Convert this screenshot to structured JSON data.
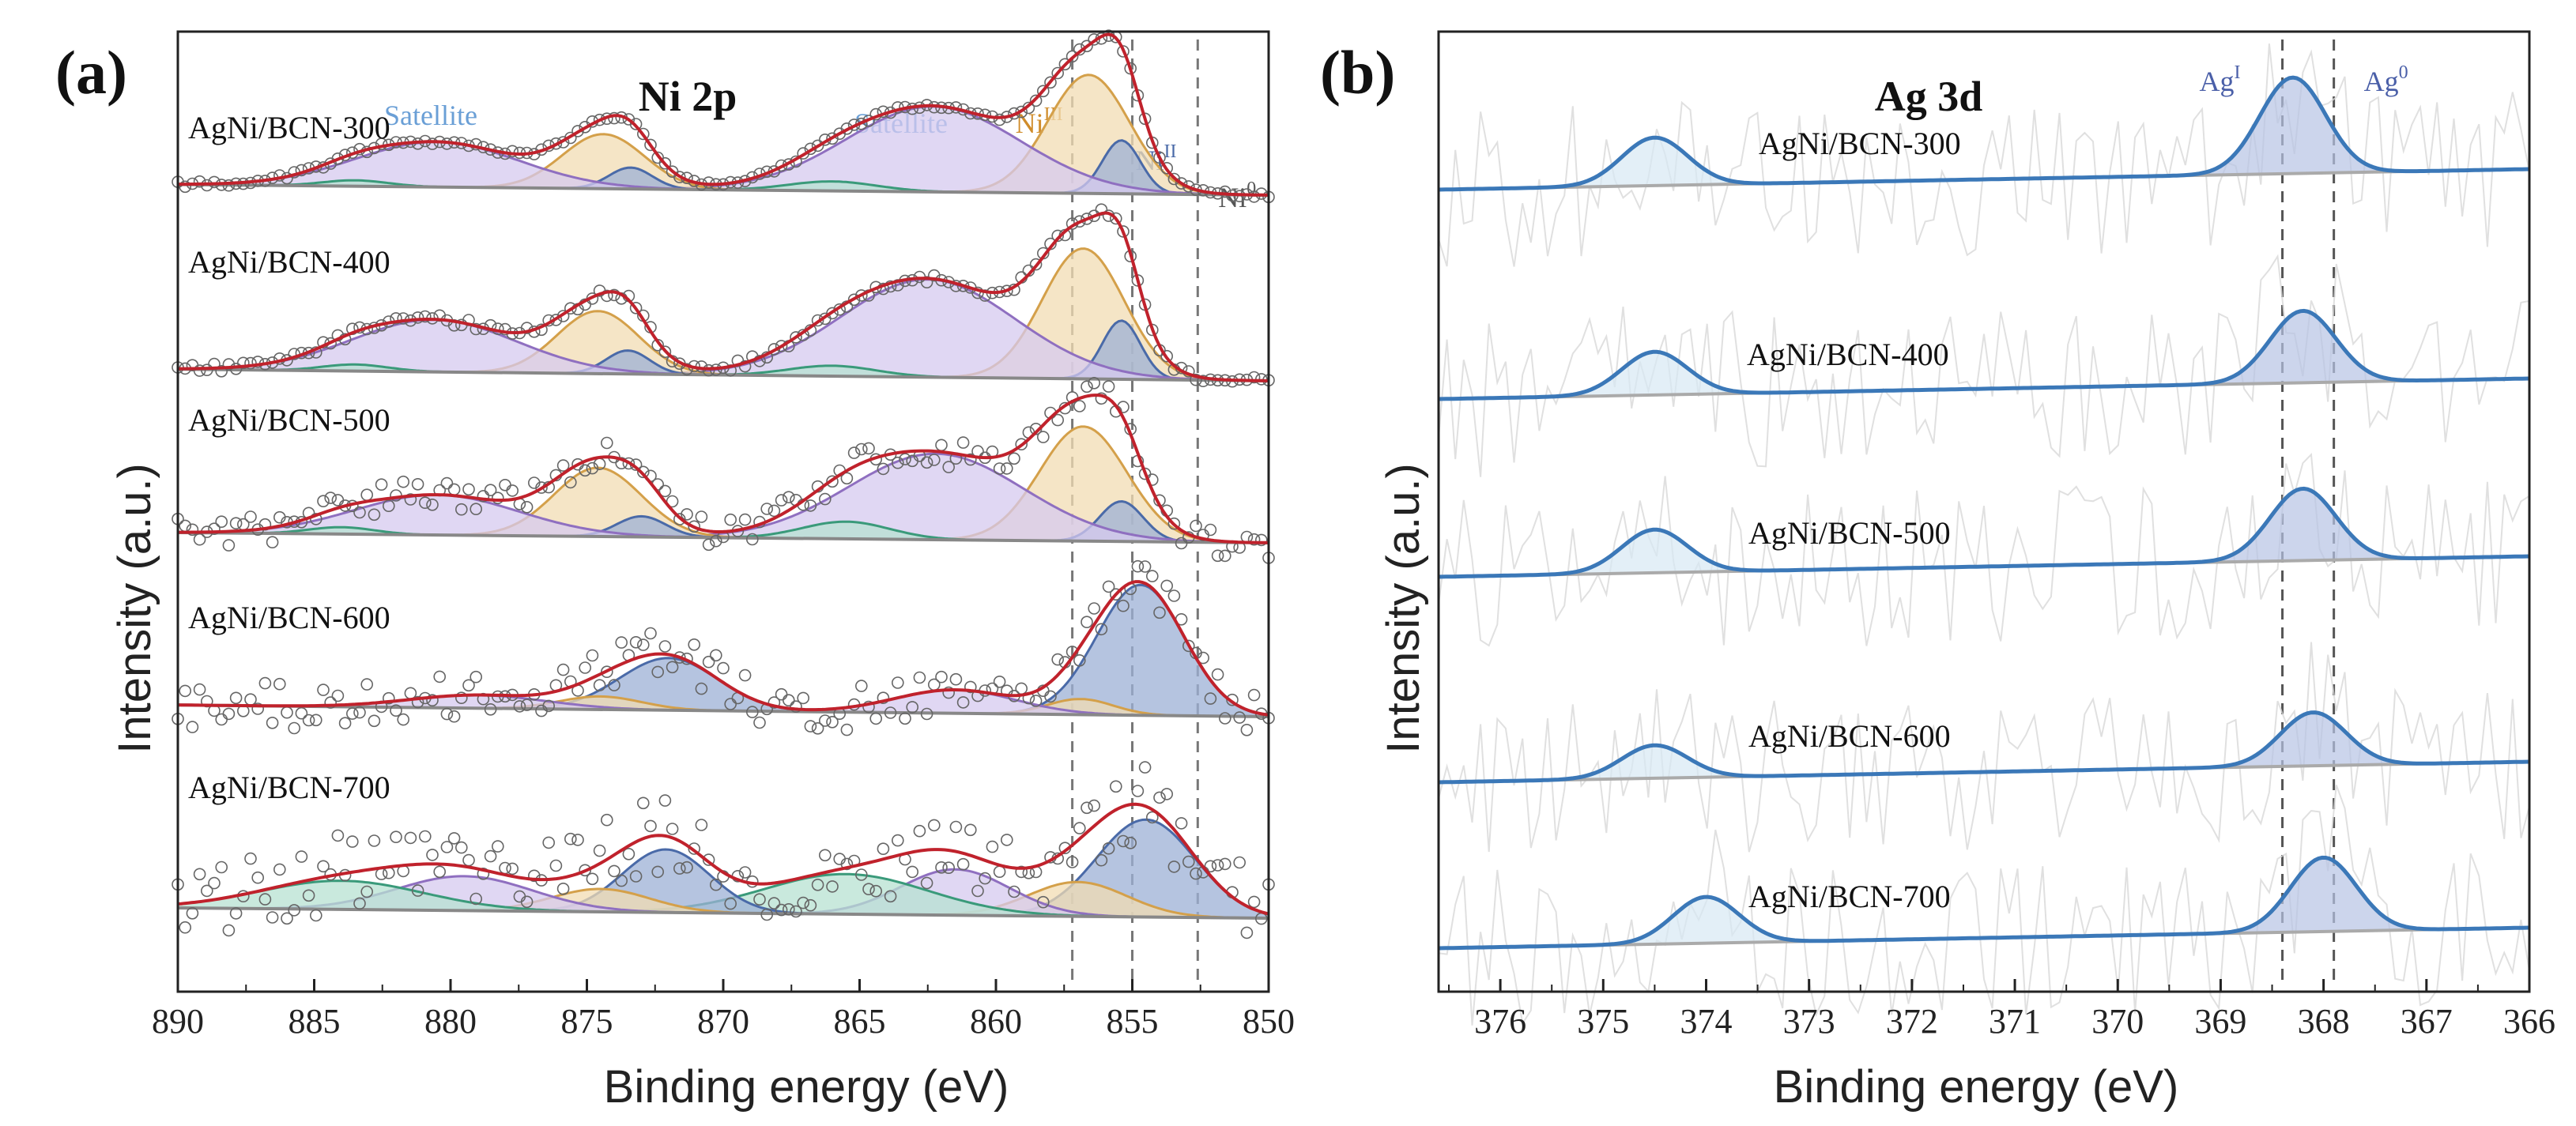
{
  "chart_data": [
    {
      "type": "line",
      "panel": "(a)",
      "title": "Ni 2p",
      "xlabel": "Binding energy (eV)",
      "ylabel": "Intensity (a.u.)",
      "xlim": [
        890,
        850
      ],
      "xticks": [
        890,
        885,
        880,
        875,
        870,
        865,
        860,
        855,
        850
      ],
      "samples": [
        "AgNi/BCN-300",
        "AgNi/BCN-400",
        "AgNi/BCN-500",
        "AgNi/BCN-600",
        "AgNi/BCN-700"
      ],
      "reference_lines": [
        {
          "x": 857.2,
          "label": "Ni",
          "sup": "III"
        },
        {
          "x": 855.0,
          "label": "Ni",
          "sup": "II"
        },
        {
          "x": 852.6,
          "label": "Ni",
          "sup": "0"
        }
      ],
      "annotations": [
        "Satellite",
        "Satellite"
      ],
      "series": [
        {
          "name": "AgNi/BCN-300",
          "noise": 0.01,
          "peaks": [
            {
              "center": 856.6,
              "amp": 1.0,
              "width": 1.5,
              "color": "#d4a04a",
              "fill": "#f2dcb3"
            },
            {
              "center": 855.4,
              "amp": 0.45,
              "width": 0.7,
              "color": "#4a6aa8",
              "fill": "#9cb0d6"
            },
            {
              "center": 862.3,
              "amp": 0.72,
              "width": 3.2,
              "color": "#8f6fc0",
              "fill": "#d6c9ef"
            },
            {
              "center": 866.0,
              "amp": 0.08,
              "width": 1.6,
              "color": "#3a9a7a",
              "fill": "#b7e2d2"
            },
            {
              "center": 874.4,
              "amp": 0.46,
              "width": 1.5,
              "color": "#d4a04a",
              "fill": "#f2dcb3"
            },
            {
              "center": 873.4,
              "amp": 0.18,
              "width": 0.8,
              "color": "#4a6aa8",
              "fill": "#9cb0d6"
            },
            {
              "center": 880.5,
              "amp": 0.38,
              "width": 3.0,
              "color": "#8f6fc0",
              "fill": "#d6c9ef"
            },
            {
              "center": 883.5,
              "amp": 0.05,
              "width": 1.2,
              "color": "#3a9a7a",
              "fill": "#b7e2d2"
            }
          ]
        },
        {
          "name": "AgNi/BCN-400",
          "noise": 0.015,
          "peaks": [
            {
              "center": 856.8,
              "amp": 1.0,
              "width": 1.5,
              "color": "#d4a04a",
              "fill": "#f2dcb3"
            },
            {
              "center": 855.4,
              "amp": 0.45,
              "width": 0.7,
              "color": "#4a6aa8",
              "fill": "#9cb0d6"
            },
            {
              "center": 862.5,
              "amp": 0.75,
              "width": 3.2,
              "color": "#8f6fc0",
              "fill": "#d6c9ef"
            },
            {
              "center": 866.0,
              "amp": 0.08,
              "width": 1.6,
              "color": "#3a9a7a",
              "fill": "#b7e2d2"
            },
            {
              "center": 874.6,
              "amp": 0.48,
              "width": 1.5,
              "color": "#d4a04a",
              "fill": "#f2dcb3"
            },
            {
              "center": 873.5,
              "amp": 0.18,
              "width": 0.8,
              "color": "#4a6aa8",
              "fill": "#9cb0d6"
            },
            {
              "center": 880.6,
              "amp": 0.4,
              "width": 3.0,
              "color": "#8f6fc0",
              "fill": "#d6c9ef"
            },
            {
              "center": 883.5,
              "amp": 0.05,
              "width": 1.2,
              "color": "#3a9a7a",
              "fill": "#b7e2d2"
            }
          ]
        },
        {
          "name": "AgNi/BCN-500",
          "noise": 0.06,
          "peaks": [
            {
              "center": 856.8,
              "amp": 1.0,
              "width": 1.6,
              "color": "#d4a04a",
              "fill": "#f2dcb3"
            },
            {
              "center": 855.4,
              "amp": 0.35,
              "width": 0.8,
              "color": "#4a6aa8",
              "fill": "#9cb0d6"
            },
            {
              "center": 862.2,
              "amp": 0.75,
              "width": 3.2,
              "color": "#8f6fc0",
              "fill": "#d6c9ef"
            },
            {
              "center": 865.5,
              "amp": 0.15,
              "width": 1.6,
              "color": "#3a9a7a",
              "fill": "#b7e2d2"
            },
            {
              "center": 874.6,
              "amp": 0.6,
              "width": 1.6,
              "color": "#d4a04a",
              "fill": "#f2dcb3"
            },
            {
              "center": 873.0,
              "amp": 0.18,
              "width": 0.9,
              "color": "#4a6aa8",
              "fill": "#9cb0d6"
            },
            {
              "center": 880.5,
              "amp": 0.35,
              "width": 3.0,
              "color": "#8f6fc0",
              "fill": "#d6c9ef"
            },
            {
              "center": 884.0,
              "amp": 0.06,
              "width": 1.2,
              "color": "#3a9a7a",
              "fill": "#b7e2d2"
            }
          ]
        },
        {
          "name": "AgNi/BCN-600",
          "noise": 0.08,
          "peaks": [
            {
              "center": 854.7,
              "amp": 1.0,
              "width": 1.6,
              "color": "#4a6aa8",
              "fill": "#9cb0d6"
            },
            {
              "center": 856.9,
              "amp": 0.12,
              "width": 1.2,
              "color": "#d4a04a",
              "fill": "#f2dcb3"
            },
            {
              "center": 861.5,
              "amp": 0.18,
              "width": 2.2,
              "color": "#8f6fc0",
              "fill": "#d6c9ef"
            },
            {
              "center": 872.0,
              "amp": 0.4,
              "width": 1.8,
              "color": "#4a6aa8",
              "fill": "#9cb0d6"
            },
            {
              "center": 874.5,
              "amp": 0.1,
              "width": 1.5,
              "color": "#d4a04a",
              "fill": "#f2dcb3"
            },
            {
              "center": 879.0,
              "amp": 0.1,
              "width": 2.5,
              "color": "#8f6fc0",
              "fill": "#d6c9ef"
            }
          ]
        },
        {
          "name": "AgNi/BCN-700",
          "noise": 0.16,
          "peaks": [
            {
              "center": 854.5,
              "amp": 0.85,
              "width": 1.8,
              "color": "#4a6aa8",
              "fill": "#9cb0d6"
            },
            {
              "center": 857.0,
              "amp": 0.3,
              "width": 1.8,
              "color": "#d4a04a",
              "fill": "#f2dcb3"
            },
            {
              "center": 861.5,
              "amp": 0.4,
              "width": 2.0,
              "color": "#8f6fc0",
              "fill": "#d6c9ef"
            },
            {
              "center": 865.5,
              "amp": 0.35,
              "width": 3.0,
              "color": "#3a9a7a",
              "fill": "#b7e2d2"
            },
            {
              "center": 872.1,
              "amp": 0.55,
              "width": 1.6,
              "color": "#4a6aa8",
              "fill": "#9cb0d6"
            },
            {
              "center": 874.5,
              "amp": 0.2,
              "width": 1.8,
              "color": "#d4a04a",
              "fill": "#f2dcb3"
            },
            {
              "center": 879.5,
              "amp": 0.3,
              "width": 2.5,
              "color": "#8f6fc0",
              "fill": "#d6c9ef"
            },
            {
              "center": 884.0,
              "amp": 0.25,
              "width": 3.0,
              "color": "#3a9a7a",
              "fill": "#b7e2d2"
            }
          ]
        }
      ]
    },
    {
      "type": "line",
      "panel": "(b)",
      "title": "Ag 3d",
      "xlabel": "Binding energy (eV)",
      "ylabel": "Intensity (a.u.)",
      "xlim": [
        376.6,
        366.0
      ],
      "xticks": [
        376,
        375,
        374,
        373,
        372,
        371,
        370,
        369,
        368,
        367,
        366
      ],
      "samples": [
        "AgNi/BCN-300",
        "AgNi/BCN-400",
        "AgNi/BCN-500",
        "AgNi/BCN-600",
        "AgNi/BCN-700"
      ],
      "reference_lines": [
        {
          "x": 368.4,
          "label": "Ag",
          "sup": "I"
        },
        {
          "x": 367.9,
          "label": "Ag",
          "sup": "0"
        }
      ],
      "series": [
        {
          "name": "AgNi/BCN-300",
          "peaks": [
            {
              "center": 374.5,
              "amp": 0.45
            },
            {
              "center": 368.3,
              "amp": 0.9
            }
          ]
        },
        {
          "name": "AgNi/BCN-400",
          "peaks": [
            {
              "center": 374.5,
              "amp": 0.42
            },
            {
              "center": 368.2,
              "amp": 0.7
            }
          ]
        },
        {
          "name": "AgNi/BCN-500",
          "peaks": [
            {
              "center": 374.5,
              "amp": 0.42
            },
            {
              "center": 368.2,
              "amp": 0.7
            }
          ]
        },
        {
          "name": "AgNi/BCN-600",
          "peaks": [
            {
              "center": 374.5,
              "amp": 0.32
            },
            {
              "center": 368.1,
              "amp": 0.52
            }
          ]
        },
        {
          "name": "AgNi/BCN-700",
          "peaks": [
            {
              "center": 374.0,
              "amp": 0.45
            },
            {
              "center": 368.0,
              "amp": 0.72
            }
          ]
        }
      ]
    }
  ]
}
